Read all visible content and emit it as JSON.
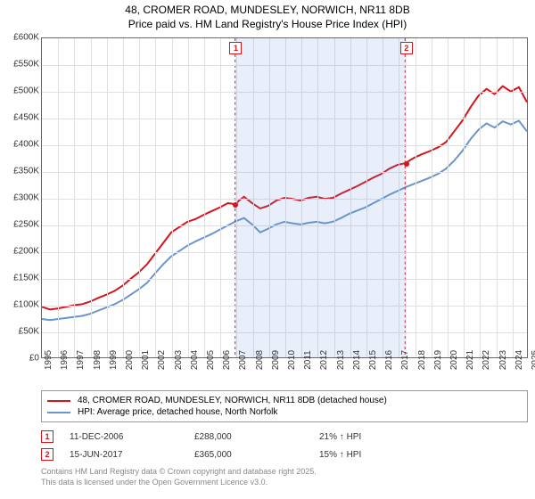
{
  "title": {
    "line1": "48, CROMER ROAD, MUNDESLEY, NORWICH, NR11 8DB",
    "line2": "Price paid vs. HM Land Registry's House Price Index (HPI)"
  },
  "chart": {
    "type": "line",
    "background_color": "#ffffff",
    "grid_color": "#e0e0e0",
    "border_color": "#666666",
    "y_axis": {
      "min": 0,
      "max": 600000,
      "step": 50000,
      "labels": [
        "£0",
        "£50K",
        "£100K",
        "£150K",
        "£200K",
        "£250K",
        "£300K",
        "£350K",
        "£400K",
        "£450K",
        "£500K",
        "£550K",
        "£600K"
      ]
    },
    "x_axis": {
      "min": 1995,
      "max": 2025,
      "step": 1,
      "labels": [
        "1995",
        "1996",
        "1997",
        "1998",
        "1999",
        "2000",
        "2001",
        "2002",
        "2003",
        "2004",
        "2005",
        "2006",
        "2007",
        "2008",
        "2009",
        "2010",
        "2011",
        "2012",
        "2013",
        "2014",
        "2015",
        "2016",
        "2017",
        "2018",
        "2019",
        "2020",
        "2021",
        "2022",
        "2023",
        "2024",
        "2025"
      ]
    },
    "shade_region": {
      "from": 2006.95,
      "to": 2017.46
    },
    "series": [
      {
        "name": "price_paid",
        "color": "#d4151b",
        "width": 2,
        "data": [
          [
            1995,
            95000
          ],
          [
            1995.5,
            90000
          ],
          [
            1996,
            92000
          ],
          [
            1996.5,
            95000
          ],
          [
            1997,
            98000
          ],
          [
            1997.5,
            100000
          ],
          [
            1998,
            105000
          ],
          [
            1998.5,
            112000
          ],
          [
            1999,
            118000
          ],
          [
            1999.5,
            125000
          ],
          [
            2000,
            135000
          ],
          [
            2000.5,
            148000
          ],
          [
            2001,
            160000
          ],
          [
            2001.5,
            175000
          ],
          [
            2002,
            195000
          ],
          [
            2002.5,
            215000
          ],
          [
            2003,
            235000
          ],
          [
            2003.5,
            245000
          ],
          [
            2004,
            255000
          ],
          [
            2004.5,
            260000
          ],
          [
            2005,
            268000
          ],
          [
            2005.5,
            275000
          ],
          [
            2006,
            282000
          ],
          [
            2006.5,
            290000
          ],
          [
            2006.95,
            288000
          ],
          [
            2007.2,
            295000
          ],
          [
            2007.5,
            302000
          ],
          [
            2008,
            290000
          ],
          [
            2008.5,
            280000
          ],
          [
            2009,
            285000
          ],
          [
            2009.5,
            295000
          ],
          [
            2010,
            300000
          ],
          [
            2010.5,
            298000
          ],
          [
            2011,
            295000
          ],
          [
            2011.5,
            300000
          ],
          [
            2012,
            302000
          ],
          [
            2012.5,
            298000
          ],
          [
            2013,
            300000
          ],
          [
            2013.5,
            308000
          ],
          [
            2014,
            315000
          ],
          [
            2014.5,
            322000
          ],
          [
            2015,
            330000
          ],
          [
            2015.5,
            338000
          ],
          [
            2016,
            345000
          ],
          [
            2016.5,
            355000
          ],
          [
            2017,
            362000
          ],
          [
            2017.46,
            365000
          ],
          [
            2018,
            375000
          ],
          [
            2018.5,
            382000
          ],
          [
            2019,
            388000
          ],
          [
            2019.5,
            395000
          ],
          [
            2020,
            405000
          ],
          [
            2020.5,
            425000
          ],
          [
            2021,
            445000
          ],
          [
            2021.5,
            470000
          ],
          [
            2022,
            492000
          ],
          [
            2022.5,
            505000
          ],
          [
            2023,
            495000
          ],
          [
            2023.5,
            510000
          ],
          [
            2024,
            500000
          ],
          [
            2024.5,
            508000
          ],
          [
            2025,
            480000
          ]
        ]
      },
      {
        "name": "hpi",
        "color": "#6b94c9",
        "width": 2,
        "data": [
          [
            1995,
            72000
          ],
          [
            1995.5,
            70000
          ],
          [
            1996,
            72000
          ],
          [
            1996.5,
            74000
          ],
          [
            1997,
            76000
          ],
          [
            1997.5,
            78000
          ],
          [
            1998,
            82000
          ],
          [
            1998.5,
            88000
          ],
          [
            1999,
            94000
          ],
          [
            1999.5,
            100000
          ],
          [
            2000,
            108000
          ],
          [
            2000.5,
            118000
          ],
          [
            2001,
            128000
          ],
          [
            2001.5,
            140000
          ],
          [
            2002,
            158000
          ],
          [
            2002.5,
            175000
          ],
          [
            2003,
            190000
          ],
          [
            2003.5,
            200000
          ],
          [
            2004,
            210000
          ],
          [
            2004.5,
            218000
          ],
          [
            2005,
            225000
          ],
          [
            2005.5,
            232000
          ],
          [
            2006,
            240000
          ],
          [
            2006.5,
            248000
          ],
          [
            2007,
            256000
          ],
          [
            2007.5,
            262000
          ],
          [
            2008,
            250000
          ],
          [
            2008.5,
            235000
          ],
          [
            2009,
            242000
          ],
          [
            2009.5,
            250000
          ],
          [
            2010,
            255000
          ],
          [
            2010.5,
            252000
          ],
          [
            2011,
            250000
          ],
          [
            2011.5,
            253000
          ],
          [
            2012,
            255000
          ],
          [
            2012.5,
            252000
          ],
          [
            2013,
            255000
          ],
          [
            2013.5,
            262000
          ],
          [
            2014,
            270000
          ],
          [
            2014.5,
            276000
          ],
          [
            2015,
            282000
          ],
          [
            2015.5,
            290000
          ],
          [
            2016,
            298000
          ],
          [
            2016.5,
            306000
          ],
          [
            2017,
            313000
          ],
          [
            2017.5,
            320000
          ],
          [
            2018,
            326000
          ],
          [
            2018.5,
            332000
          ],
          [
            2019,
            338000
          ],
          [
            2019.5,
            345000
          ],
          [
            2020,
            355000
          ],
          [
            2020.5,
            370000
          ],
          [
            2021,
            388000
          ],
          [
            2021.5,
            410000
          ],
          [
            2022,
            428000
          ],
          [
            2022.5,
            440000
          ],
          [
            2023,
            432000
          ],
          [
            2023.5,
            444000
          ],
          [
            2024,
            438000
          ],
          [
            2024.5,
            445000
          ],
          [
            2025,
            425000
          ]
        ]
      }
    ],
    "markers": [
      {
        "id": "1",
        "x": 2006.95,
        "y": 288000,
        "color": "#d4151b"
      },
      {
        "id": "2",
        "x": 2017.46,
        "y": 365000,
        "color": "#d4151b"
      }
    ]
  },
  "legend": {
    "items": [
      {
        "color": "#d4151b",
        "label": "48, CROMER ROAD, MUNDESLEY, NORWICH, NR11 8DB (detached house)"
      },
      {
        "color": "#6b94c9",
        "label": "HPI: Average price, detached house, North Norfolk"
      }
    ]
  },
  "transactions": [
    {
      "id": "1",
      "color": "#d4151b",
      "date": "11-DEC-2006",
      "price": "£288,000",
      "delta": "21% ↑ HPI"
    },
    {
      "id": "2",
      "color": "#d4151b",
      "date": "15-JUN-2017",
      "price": "£365,000",
      "delta": "15% ↑ HPI"
    }
  ],
  "footer": {
    "line1": "Contains HM Land Registry data © Crown copyright and database right 2025.",
    "line2": "This data is licensed under the Open Government Licence v3.0."
  }
}
